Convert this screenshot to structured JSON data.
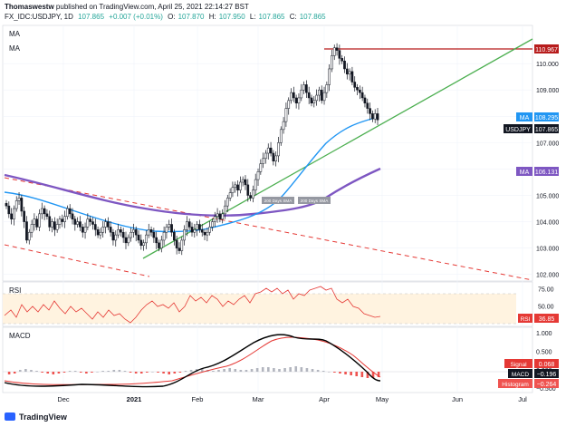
{
  "header": {
    "author": "Thomaswestw",
    "published": "published on TradingView.com, April 25, 2021 22:14:27 BST",
    "symbol": "FX_IDC:USDJPY, 1D",
    "last": "107.865",
    "change": "+0.007 (+0.01%)",
    "o_label": "O:",
    "o": "107.870",
    "h_label": "H:",
    "h": "107.950",
    "l_label": "L:",
    "l": "107.865",
    "c_label": "C:",
    "c": "107.865"
  },
  "footer": {
    "brand": "TradingView"
  },
  "colors": {
    "up": "#26a69a",
    "ma_fast": "#2196f3",
    "ma_slow": "#7e57c2",
    "trend": "#4caf50",
    "resistance": "#b71c1c",
    "channel": "#e53935",
    "rsi": "#e53935",
    "signal": "#e53935",
    "macd": "#000000",
    "hist_pos": "#b2b5be",
    "hist_neg": "#ef5350"
  },
  "chart_data": {
    "type": "candlestick",
    "symbol": "FX_IDC:USDJPY",
    "timeframe": "1D",
    "x_ticks": [
      "Dec",
      "2021",
      "Feb",
      "Mar",
      "Apr",
      "May",
      "Jun",
      "Jul"
    ],
    "price_panel": {
      "legend": [
        "MA",
        "MA"
      ],
      "y_ticks": [
        102.0,
        103.0,
        104.0,
        105.0,
        106.0,
        107.0,
        108.0,
        109.0,
        110.0
      ],
      "ylim": [
        101.75,
        111.45
      ],
      "closes": [
        104.6,
        104.3,
        104.1,
        104.5,
        104.8,
        104.9,
        104.4,
        104.0,
        103.3,
        103.6,
        103.9,
        104.1,
        103.8,
        104.3,
        104.5,
        104.3,
        104.2,
        103.8,
        104.0,
        103.7,
        103.9,
        104.1,
        104.0,
        104.2,
        104.5,
        104.3,
        104.1,
        103.9,
        104.0,
        103.8,
        103.6,
        103.8,
        104.1,
        104.0,
        103.9,
        103.7,
        103.5,
        103.6,
        103.8,
        104.0,
        103.8,
        103.6,
        103.3,
        103.5,
        103.7,
        103.6,
        103.4,
        103.2,
        103.4,
        103.6,
        103.7,
        103.5,
        103.3,
        103.1,
        103.2,
        103.5,
        103.7,
        103.6,
        103.4,
        103.2,
        103.0,
        103.3,
        103.6,
        103.8,
        103.9,
        103.6,
        103.3,
        103.0,
        102.9,
        103.3,
        103.7,
        104.0,
        103.8,
        103.6,
        103.7,
        103.9,
        103.7,
        103.6,
        103.5,
        103.6,
        103.8,
        104.0,
        104.2,
        104.3,
        104.1,
        104.3,
        104.6,
        104.9,
        105.1,
        105.3,
        105.4,
        105.2,
        105.5,
        105.6,
        105.4,
        105.0,
        104.9,
        105.2,
        105.6,
        105.9,
        106.2,
        106.4,
        106.6,
        106.8,
        106.6,
        106.3,
        106.5,
        107.0,
        107.5,
        107.8,
        108.3,
        108.6,
        108.9,
        108.7,
        108.5,
        108.7,
        109.0,
        109.2,
        108.9,
        108.7,
        108.5,
        108.6,
        108.8,
        109.0,
        108.6,
        108.9,
        109.2,
        109.8,
        110.3,
        110.6,
        110.5,
        110.2,
        110.1,
        109.8,
        109.6,
        109.7,
        109.3,
        109.1,
        109.0,
        108.9,
        108.7,
        108.5,
        108.3,
        108.1,
        107.9,
        108.1,
        107.865
      ],
      "annotations": [
        {
          "label": "110.967",
          "type": "horizontal-line",
          "price": 110.967
        },
        {
          "label": "MA",
          "value": 108.295
        },
        {
          "label": "USDJPY",
          "value": 107.865
        },
        {
          "label": "MA",
          "value": 106.131
        },
        {
          "label": "200 Days SMA",
          "type": "tag"
        },
        {
          "label": "200 Days SMA",
          "type": "tag"
        }
      ]
    },
    "rsi_panel": {
      "title": "RSI",
      "y_ticks": [
        50.0,
        75.0
      ],
      "ylim": [
        20,
        85
      ],
      "band": [
        30,
        70
      ],
      "last_value": 36.85
    },
    "macd_panel": {
      "title": "MACD",
      "y_ticks": [
        1.0,
        0.5,
        0.0,
        -0.5
      ],
      "ylim": [
        -0.62,
        1.15
      ],
      "signal_last": 0.068,
      "macd_last": -0.196,
      "histogram_last": -0.264
    }
  },
  "labels": {
    "ma_fast_val": "108.295",
    "price_val": "107.865",
    "resistance_val": "110.967",
    "ma_slow_val": "106.131",
    "rsi_title": "RSI",
    "rsi_tag": "RSI",
    "rsi_val": "36.85",
    "macd_title": "MACD",
    "signal_tag": "Signal",
    "signal_val": "0.068",
    "macd_tag": "MACD",
    "macd_val": "−0.196",
    "hist_tag": "Histogram",
    "hist_val": "−0.264",
    "sma_tag_1": "200 Days SMA",
    "sma_tag_2": "200 Days SMA",
    "ma_tag": "MA",
    "price_tag": "USDJPY"
  }
}
